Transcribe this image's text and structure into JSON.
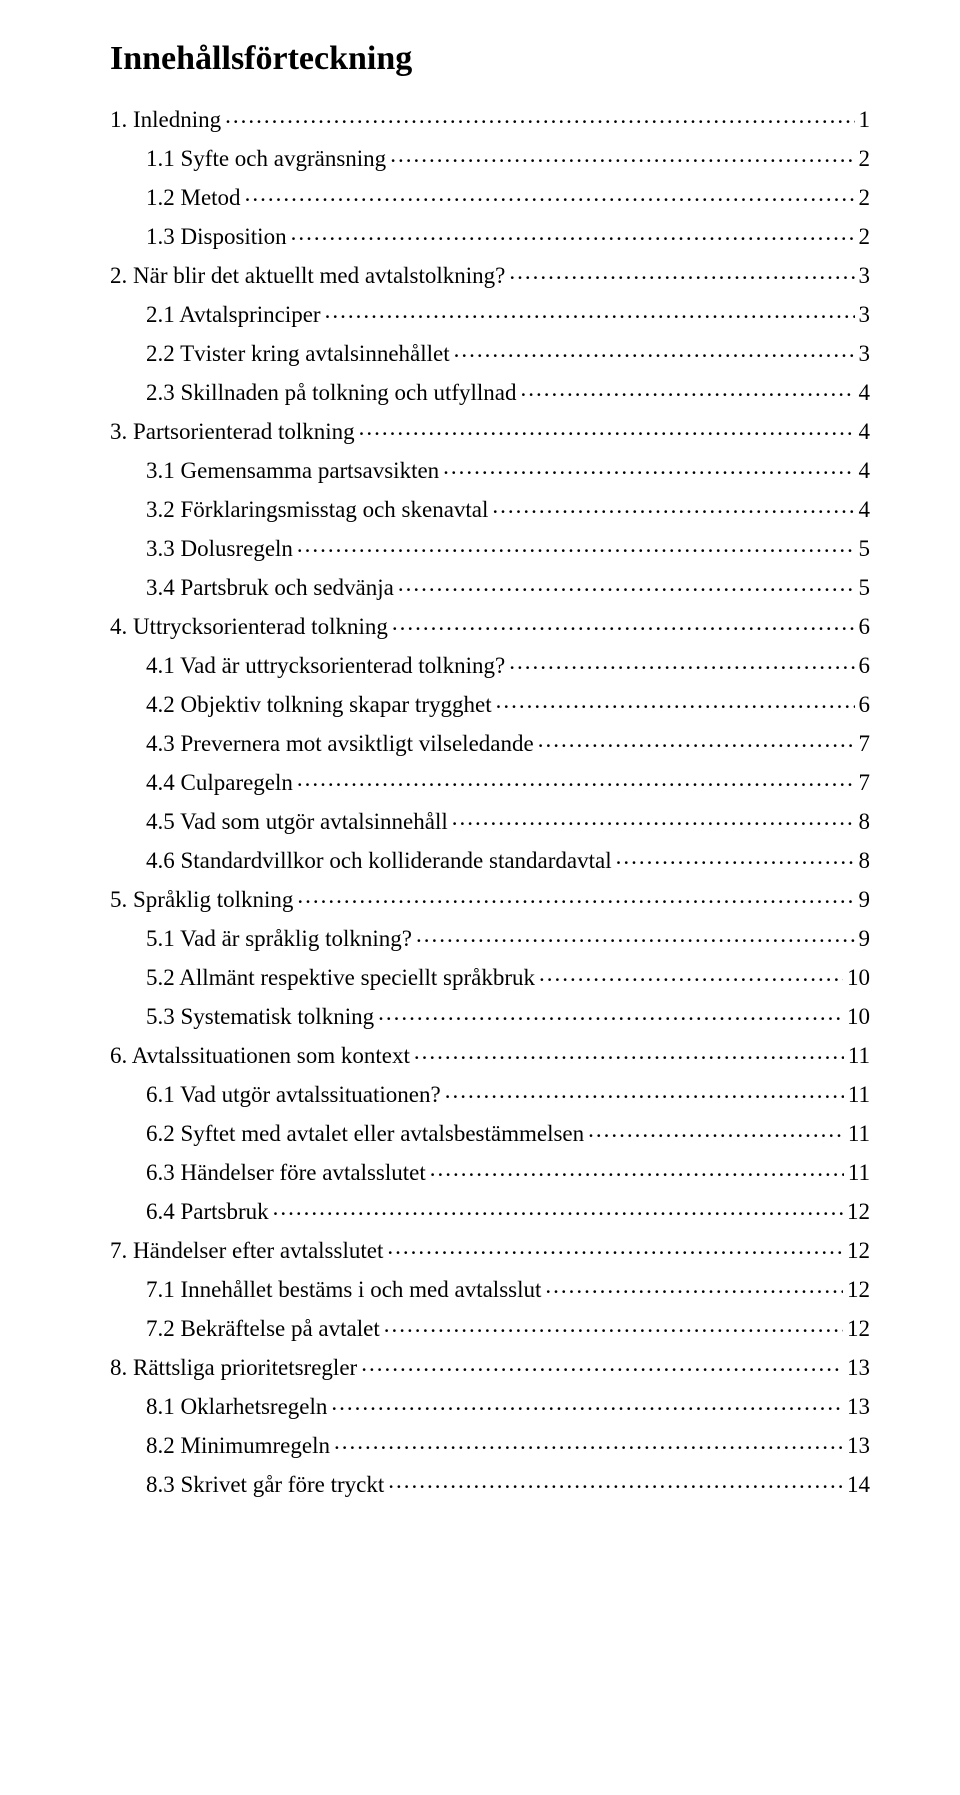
{
  "title": "Innehållsförteckning",
  "toc": [
    {
      "label": "1.   Inledning",
      "page": "1",
      "indent": 0
    },
    {
      "label": "1.1 Syfte och avgränsning",
      "page": "2",
      "indent": 1
    },
    {
      "label": "1.2   Metod",
      "page": "2",
      "indent": 1
    },
    {
      "label": "1.3   Disposition",
      "page": "2",
      "indent": 1
    },
    {
      "label": "2.   När blir det aktuellt med avtalstolkning?",
      "page": "3",
      "indent": 0
    },
    {
      "label": "2.1 Avtalsprinciper",
      "page": "3",
      "indent": 1
    },
    {
      "label": "2.2 Tvister kring avtalsinnehållet",
      "page": "3",
      "indent": 1
    },
    {
      "label": "2.3 Skillnaden på tolkning och utfyllnad",
      "page": "4",
      "indent": 1
    },
    {
      "label": "3.   Partsorienterad tolkning",
      "page": "4",
      "indent": 0
    },
    {
      "label": "3.1 Gemensamma partsavsikten",
      "page": "4",
      "indent": 1
    },
    {
      "label": "3.2 Förklaringsmisstag och skenavtal",
      "page": "4",
      "indent": 1
    },
    {
      "label": "3.3 Dolusregeln",
      "page": "5",
      "indent": 1
    },
    {
      "label": "3.4 Partsbruk och sedvänja",
      "page": "5",
      "indent": 1
    },
    {
      "label": "4.   Uttrycksorienterad tolkning",
      "page": "6",
      "indent": 0
    },
    {
      "label": "4.1 Vad är uttrycksorienterad tolkning?",
      "page": "6",
      "indent": 1
    },
    {
      "label": "4.2 Objektiv tolkning skapar trygghet",
      "page": "6",
      "indent": 1
    },
    {
      "label": "4.3 Prevernera mot avsiktligt vilseledande",
      "page": "7",
      "indent": 1
    },
    {
      "label": "4.4 Culparegeln",
      "page": "7",
      "indent": 1
    },
    {
      "label": "4.5 Vad som utgör avtalsinnehåll",
      "page": "8",
      "indent": 1
    },
    {
      "label": "4.6 Standardvillkor och kolliderande standardavtal",
      "page": "8",
      "indent": 1
    },
    {
      "label": "5.   Språklig tolkning",
      "page": "9",
      "indent": 0
    },
    {
      "label": "5.1 Vad är språklig tolkning?",
      "page": "9",
      "indent": 1
    },
    {
      "label": "5.2 Allmänt respektive speciellt språkbruk",
      "page": "10",
      "indent": 1
    },
    {
      "label": "5.3 Systematisk tolkning",
      "page": "10",
      "indent": 1
    },
    {
      "label": "6.   Avtalssituationen som kontext",
      "page": "11",
      "indent": 0
    },
    {
      "label": "6.1 Vad utgör avtalssituationen?",
      "page": "11",
      "indent": 1
    },
    {
      "label": "6.2 Syftet med avtalet eller avtalsbestämmelsen",
      "page": "11",
      "indent": 1
    },
    {
      "label": "6.3 Händelser före avtalsslutet",
      "page": "11",
      "indent": 1
    },
    {
      "label": "6.4 Partsbruk",
      "page": "12",
      "indent": 1
    },
    {
      "label": "7.   Händelser efter avtalsslutet",
      "page": "12",
      "indent": 0
    },
    {
      "label": "7.1 Innehållet bestäms i och med avtalsslut",
      "page": "12",
      "indent": 1
    },
    {
      "label": "7.2 Bekräftelse på avtalet",
      "page": "12",
      "indent": 1
    },
    {
      "label": "8.   Rättsliga prioritetsregler",
      "page": "13",
      "indent": 0
    },
    {
      "label": "8.1 Oklarhetsregeln",
      "page": "13",
      "indent": 1
    },
    {
      "label": "8.2 Minimumregeln",
      "page": "13",
      "indent": 1
    },
    {
      "label": "8.3 Skrivet går före tryckt",
      "page": "14",
      "indent": 1
    }
  ]
}
